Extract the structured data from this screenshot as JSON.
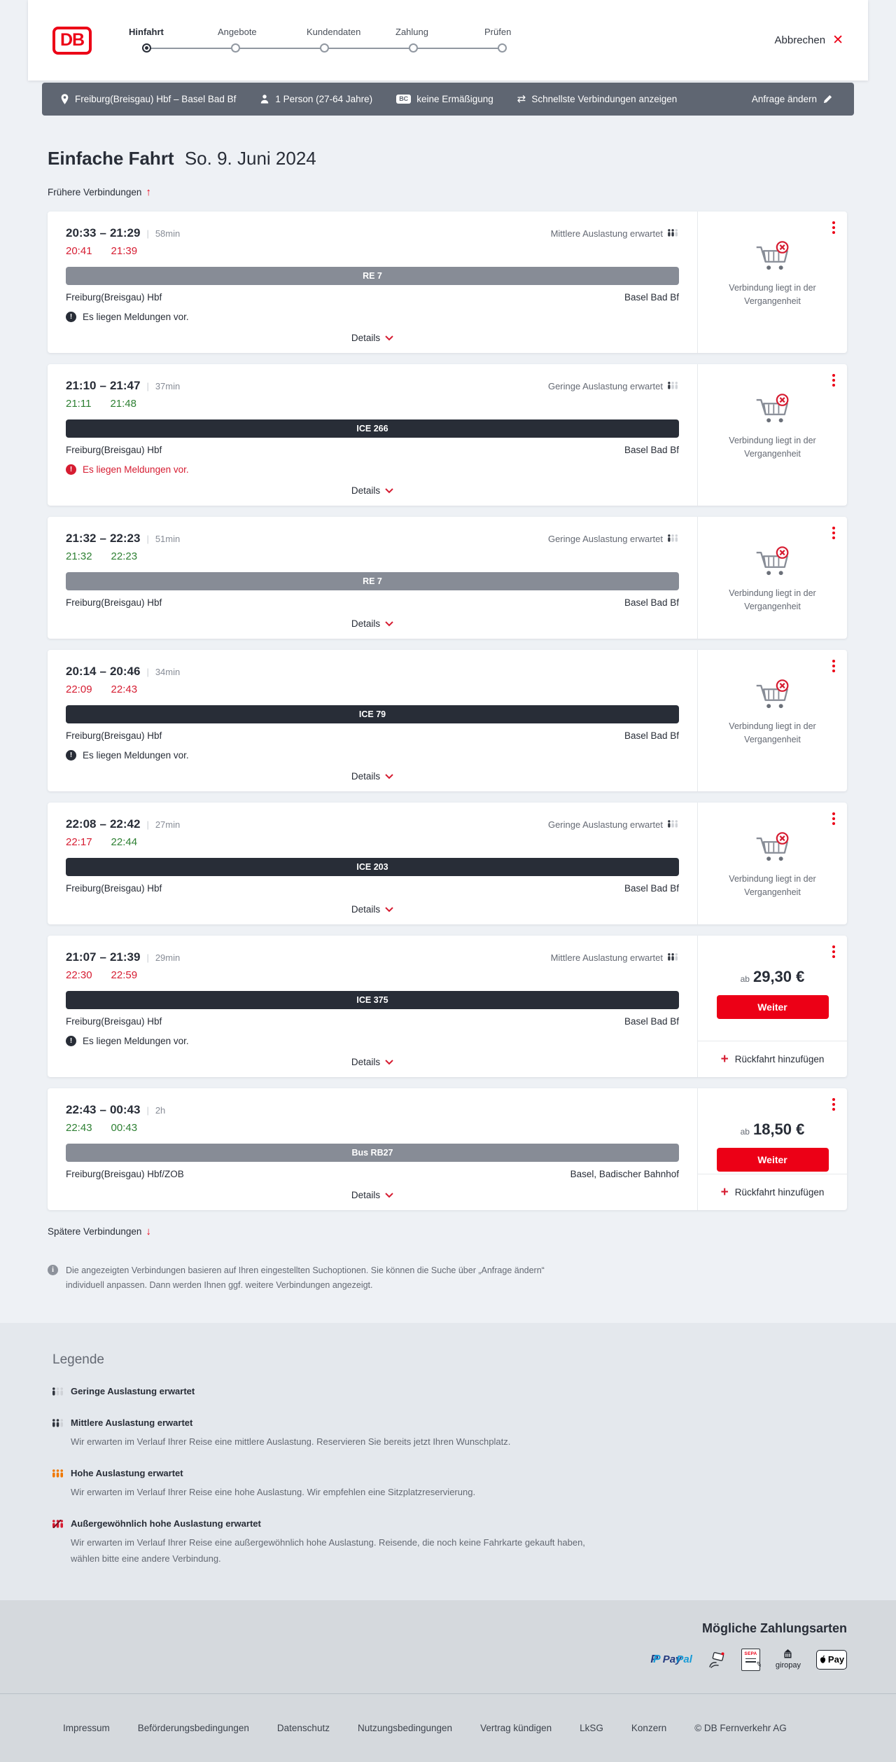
{
  "header": {
    "logo_label": "DB",
    "steps": [
      {
        "label": "Hinfahrt",
        "active": true
      },
      {
        "label": "Angebote",
        "active": false
      },
      {
        "label": "Kundendaten",
        "active": false
      },
      {
        "label": "Zahlung",
        "active": false
      },
      {
        "label": "Prüfen",
        "active": false
      }
    ],
    "cancel_label": "Abbrechen"
  },
  "query_bar": {
    "route": "Freiburg(Breisgau) Hbf – Basel Bad Bf",
    "passengers": "1 Person (27-64 Jahre)",
    "bahncard_icon_label": "BC",
    "discount": "keine Ermäßigung",
    "filter": "Schnellste Verbindungen anzeigen",
    "change_label": "Anfrage ändern"
  },
  "page": {
    "trip_type": "Einfache Fahrt",
    "date": "So. 9. Juni 2024",
    "earlier_label": "Frühere Verbindungen",
    "later_label": "Spätere Verbindungen",
    "info_text": "Die angezeigten Verbindungen basieren auf Ihren eingestellten Suchoptionen. Sie können die Suche über „Anfrage ändern“ individuell anpassen. Dann werden Ihnen ggf. weitere Verbindungen angezeigt."
  },
  "shared": {
    "time_separator": "–",
    "duration_separator": "|",
    "details_label": "Details",
    "past_line1": "Verbindung liegt in der",
    "past_line2": "Vergangenheit",
    "price_prefix": "ab",
    "continue_label": "Weiter",
    "add_return_label": "Rückfahrt hinzufügen"
  },
  "connections": [
    {
      "dep": "20:33",
      "arr": "21:29",
      "duration": "58min",
      "dep_actual": "20:41",
      "dep_actual_status": "delayed",
      "arr_actual": "21:39",
      "arr_actual_status": "delayed",
      "occupancy_label": "Mittlere Auslastung erwartet",
      "occupancy_level": "medium",
      "line_name": "RE 7",
      "line_style": "regional",
      "from": "Freiburg(Breisgau) Hbf",
      "to": "Basel Bad Bf",
      "warning_text": "Es liegen Meldungen vor.",
      "warning_style": "dark",
      "offer": null
    },
    {
      "dep": "21:10",
      "arr": "21:47",
      "duration": "37min",
      "dep_actual": "21:11",
      "dep_actual_status": "ontime",
      "arr_actual": "21:48",
      "arr_actual_status": "ontime",
      "occupancy_label": "Geringe Auslastung erwartet",
      "occupancy_level": "low",
      "line_name": "ICE 266",
      "line_style": "longdistance",
      "from": "Freiburg(Breisgau) Hbf",
      "to": "Basel Bad Bf",
      "warning_text": "Es liegen Meldungen vor.",
      "warning_style": "alert",
      "offer": null
    },
    {
      "dep": "21:32",
      "arr": "22:23",
      "duration": "51min",
      "dep_actual": "21:32",
      "dep_actual_status": "ontime",
      "arr_actual": "22:23",
      "arr_actual_status": "ontime",
      "occupancy_label": "Geringe Auslastung erwartet",
      "occupancy_level": "low",
      "line_name": "RE 7",
      "line_style": "regional",
      "from": "Freiburg(Breisgau) Hbf",
      "to": "Basel Bad Bf",
      "warning_text": null,
      "warning_style": null,
      "offer": null
    },
    {
      "dep": "20:14",
      "arr": "20:46",
      "duration": "34min",
      "dep_actual": "22:09",
      "dep_actual_status": "delayed",
      "arr_actual": "22:43",
      "arr_actual_status": "delayed",
      "occupancy_label": null,
      "occupancy_level": null,
      "line_name": "ICE 79",
      "line_style": "longdistance",
      "from": "Freiburg(Breisgau) Hbf",
      "to": "Basel Bad Bf",
      "warning_text": "Es liegen Meldungen vor.",
      "warning_style": "dark",
      "offer": null
    },
    {
      "dep": "22:08",
      "arr": "22:42",
      "duration": "27min",
      "dep_actual": "22:17",
      "dep_actual_status": "delayed",
      "arr_actual": "22:44",
      "arr_actual_status": "ontime",
      "occupancy_label": "Geringe Auslastung erwartet",
      "occupancy_level": "low",
      "line_name": "ICE 203",
      "line_style": "longdistance",
      "from": "Freiburg(Breisgau) Hbf",
      "to": "Basel Bad Bf",
      "warning_text": null,
      "warning_style": null,
      "offer": null
    },
    {
      "dep": "21:07",
      "arr": "21:39",
      "duration": "29min",
      "dep_actual": "22:30",
      "dep_actual_status": "delayed",
      "arr_actual": "22:59",
      "arr_actual_status": "delayed",
      "occupancy_label": "Mittlere Auslastung erwartet",
      "occupancy_level": "medium",
      "line_name": "ICE 375",
      "line_style": "longdistance",
      "from": "Freiburg(Breisgau) Hbf",
      "to": "Basel Bad Bf",
      "warning_text": "Es liegen Meldungen vor.",
      "warning_style": "dark",
      "offer": {
        "price": "29,30 €"
      }
    },
    {
      "dep": "22:43",
      "arr": "00:43",
      "duration": "2h",
      "dep_actual": "22:43",
      "dep_actual_status": "ontime",
      "arr_actual": "00:43",
      "arr_actual_status": "ontime",
      "occupancy_label": null,
      "occupancy_level": null,
      "line_name": "Bus RB27",
      "line_style": "regional",
      "from": "Freiburg(Breisgau) Hbf/ZOB",
      "to": "Basel, Badischer Bahnhof",
      "warning_text": null,
      "warning_style": null,
      "offer": {
        "price": "18,50 €"
      }
    }
  ],
  "legend": {
    "title": "Legende",
    "items": [
      {
        "level": "low",
        "title": "Geringe Auslastung erwartet",
        "desc": null
      },
      {
        "level": "medium",
        "title": "Mittlere Auslastung erwartet",
        "desc": "Wir erwarten im Verlauf Ihrer Reise eine mittlere Auslastung. Reservieren Sie bereits jetzt Ihren Wunschplatz."
      },
      {
        "level": "high",
        "title": "Hohe Auslastung erwartet",
        "desc": "Wir erwarten im Verlauf Ihrer Reise eine hohe Auslastung. Wir empfehlen eine Sitzplatzreservierung."
      },
      {
        "level": "exceptional",
        "title": "Außergewöhnlich hohe Auslastung erwartet",
        "desc": "Wir erwarten im Verlauf Ihrer Reise eine außergewöhnlich hohe Auslastung. Reisende, die noch keine Fahrkarte gekauft haben, wählen bitte eine andere Verbindung."
      }
    ]
  },
  "payment": {
    "title": "Mögliche Zahlungsarten",
    "paypal_pay": "Pay",
    "paypal_pal": "Pal",
    "sepa_label": "SEPA",
    "giropay_label": "giropay",
    "applepay_label": "Pay"
  },
  "footer": {
    "links": [
      "Impressum",
      "Beförderungsbedingungen",
      "Datenschutz",
      "Nutzungsbedingungen",
      "Vertrag kündigen",
      "LkSG",
      "Konzern"
    ],
    "copyright": "© DB Fernverkehr AG"
  },
  "colors": {
    "db_red": "#ec0016",
    "late_red": "#d61c31",
    "ontime_green": "#2e8033",
    "bar_regional": "#878c96",
    "bar_longdistance": "#282d37",
    "querybar_bg": "#5f6672",
    "occupancy_high_orange": "#f07800"
  }
}
